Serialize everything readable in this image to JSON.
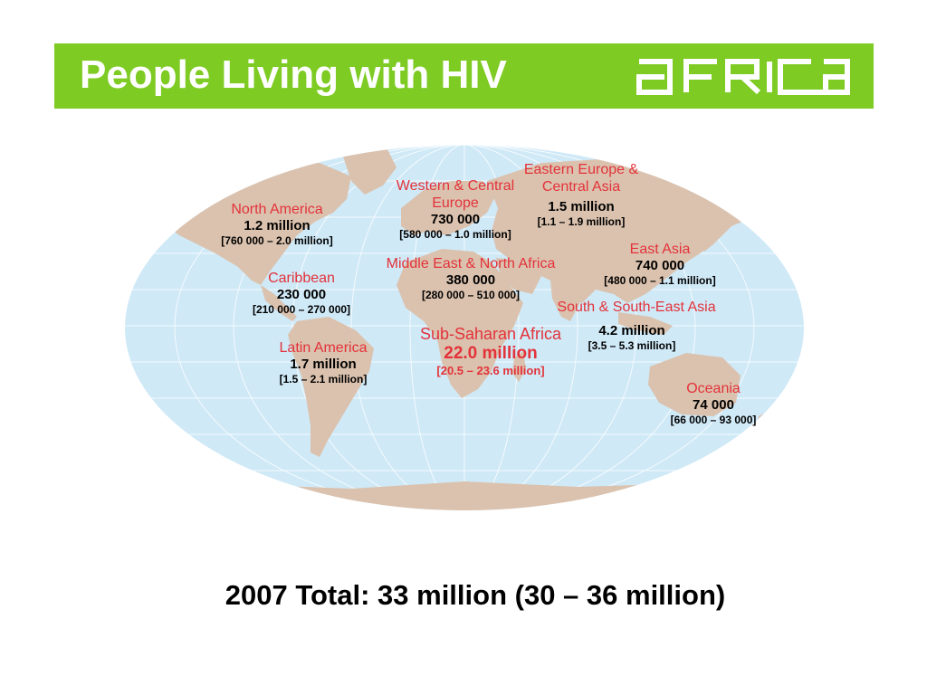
{
  "title": "People Living with HIV",
  "logo_text": "AFRICA",
  "colors": {
    "header_bg": "#7ecb23",
    "ocean": "#cfe9f7",
    "land": "#dbc2ae",
    "region_name": "#e3323a"
  },
  "regions": {
    "north_america": {
      "name": "North America",
      "value": "1.2 million",
      "range": "[760 000 – 2.0 million]"
    },
    "western_central_europe": {
      "name": "Western & Central Europe",
      "value": "730 000",
      "range": "[580 000 – 1.0 million]"
    },
    "eastern_europe_central_asia": {
      "name": "Eastern Europe & Central Asia",
      "value": "1.5 million",
      "range": "[1.1 – 1.9 million]"
    },
    "east_asia": {
      "name": "East Asia",
      "value": "740 000",
      "range": "[480 000 – 1.1 million]"
    },
    "caribbean": {
      "name": "Caribbean",
      "value": "230 000",
      "range": "[210 000 – 270 000]"
    },
    "middle_east_north_africa": {
      "name": "Middle East & North Africa",
      "value": "380 000",
      "range": "[280 000 – 510 000]"
    },
    "south_southeast_asia": {
      "name": "South & South-East Asia",
      "value": "4.2 million",
      "range": "[3.5 – 5.3 million]"
    },
    "sub_saharan_africa": {
      "name": "Sub-Saharan Africa",
      "value": "22.0 million",
      "range": "[20.5 – 23.6 million]"
    },
    "latin_america": {
      "name": "Latin America",
      "value": "1.7 million",
      "range": "[1.5 – 2.1 million]"
    },
    "oceania": {
      "name": "Oceania",
      "value": "74 000",
      "range": "[66 000 – 93 000]"
    }
  },
  "total": "2007 Total: 33 million (30 – 36 million)"
}
